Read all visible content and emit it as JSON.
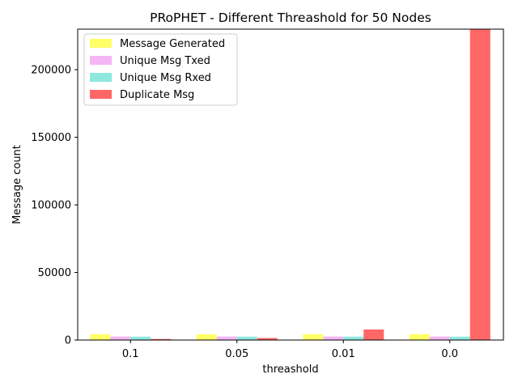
{
  "chart_data": {
    "type": "bar",
    "title": "PRoPHET - Different Threashold for 50 Nodes",
    "xlabel": "threashold",
    "ylabel": "Message count",
    "categories": [
      "0.1",
      "0.05",
      "0.01",
      "0.0"
    ],
    "ylim": [
      0,
      230000
    ],
    "yticks": [
      0,
      50000,
      100000,
      150000,
      200000
    ],
    "series": [
      {
        "name": "Message Generated",
        "color": "#ffff66",
        "values": [
          4300,
          4300,
          4300,
          4300
        ]
      },
      {
        "name": "Unique Msg Txed",
        "color": "#f4b6f4",
        "values": [
          2600,
          2600,
          2600,
          2600
        ]
      },
      {
        "name": "Unique Msg Rxed",
        "color": "#8ee8de",
        "values": [
          2500,
          2500,
          2500,
          2500
        ]
      },
      {
        "name": "Duplicate Msg",
        "color": "#ff6666",
        "values": [
          800,
          1500,
          7800,
          230000
        ]
      }
    ],
    "legend_position": "top-left",
    "grid": false
  }
}
